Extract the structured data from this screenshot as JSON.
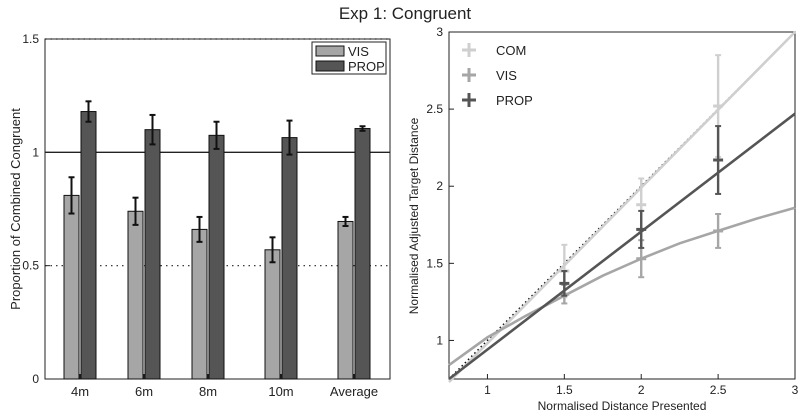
{
  "figure": {
    "title": "Exp 1: Congruent"
  },
  "chart_data": [
    {
      "type": "bar",
      "categories": [
        "4m",
        "6m",
        "8m",
        "10m",
        "Average"
      ],
      "series": [
        {
          "name": "VIS",
          "values": [
            0.81,
            0.74,
            0.66,
            0.57,
            0.695
          ],
          "errors": [
            0.08,
            0.06,
            0.055,
            0.055,
            0.02
          ],
          "color": "#a6a6a6"
        },
        {
          "name": "PROP",
          "values": [
            1.18,
            1.1,
            1.075,
            1.065,
            1.105
          ],
          "errors": [
            0.045,
            0.065,
            0.06,
            0.075,
            0.01
          ],
          "color": "#555555"
        }
      ],
      "xlabel": "",
      "ylabel": "Proportion of Combined Congruent",
      "ylim": [
        0,
        1.5
      ],
      "yticks": [
        "0",
        "0.5",
        "1",
        "1.5"
      ],
      "reference_line": 1,
      "dotted_gridlines": [
        0.5,
        1.5
      ],
      "legend": "top-right"
    },
    {
      "type": "line",
      "xlabel": "Normalised Distance Presented",
      "ylabel": "Normalised Adjusted Target Distance",
      "xlim": [
        0.75,
        3
      ],
      "ylim": [
        0.75,
        3
      ],
      "xticks": [
        "1",
        "1.5",
        "2",
        "2.5",
        "3"
      ],
      "yticks": [
        "1",
        "1.5",
        "2",
        "2.5",
        "3"
      ],
      "identity_line": true,
      "legend": "top-left",
      "series": [
        {
          "name": "COM",
          "color": "#cfcfcf",
          "line_x": [
            0.75,
            3
          ],
          "line_y": [
            0.73,
            3.0
          ],
          "points": [
            {
              "x": 1.5,
              "y": 1.45,
              "err": 0.17
            },
            {
              "x": 2,
              "y": 1.88,
              "err": 0.17
            },
            {
              "x": 2.5,
              "y": 2.52,
              "err": 0.33
            }
          ]
        },
        {
          "name": "VIS",
          "color": "#a6a6a6",
          "line_x": [
            0.75,
            1,
            1.25,
            1.5,
            1.75,
            2,
            2.25,
            2.5,
            2.75,
            3
          ],
          "line_y": [
            0.84,
            1.02,
            1.16,
            1.29,
            1.42,
            1.53,
            1.63,
            1.71,
            1.79,
            1.86
          ],
          "points": [
            {
              "x": 1.5,
              "y": 1.3,
              "err": 0.06
            },
            {
              "x": 2,
              "y": 1.53,
              "err": 0.12
            },
            {
              "x": 2.5,
              "y": 1.71,
              "err": 0.11
            }
          ]
        },
        {
          "name": "PROP",
          "color": "#555555",
          "line_x": [
            0.75,
            3
          ],
          "line_y": [
            0.75,
            2.47
          ],
          "points": [
            {
              "x": 1.5,
              "y": 1.37,
              "err": 0.08
            },
            {
              "x": 2,
              "y": 1.72,
              "err": 0.12
            },
            {
              "x": 2.5,
              "y": 2.17,
              "err": 0.22
            }
          ]
        }
      ]
    }
  ]
}
